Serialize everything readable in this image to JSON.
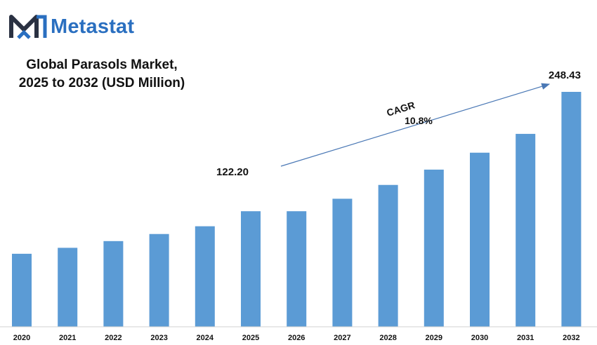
{
  "brand": {
    "name": "Metastat",
    "logo_icon": "metastat-m-logo-icon"
  },
  "colors": {
    "bar": "#5b9bd5",
    "brand": "#2a6fc0",
    "arrow": "#4a78b5"
  },
  "chart_data": {
    "type": "bar",
    "title_line1": "Global Parasols Market,",
    "title_line2": "2025 to 2032 (USD Million)",
    "categories": [
      "2020",
      "2021",
      "2022",
      "2023",
      "2024",
      "2025",
      "2026",
      "2027",
      "2028",
      "2029",
      "2030",
      "2031",
      "2032"
    ],
    "values": [
      77.2,
      83.5,
      90.6,
      98.1,
      106.3,
      122.2,
      122.2,
      135.4,
      150.0,
      166.2,
      184.1,
      204.0,
      248.43
    ],
    "ylim": [
      0,
      248.43
    ],
    "grid": false,
    "annotations": {
      "start_value": "122.20",
      "end_value": "248.43",
      "cagr_label": "CAGR",
      "cagr_value": "10.8%"
    }
  }
}
